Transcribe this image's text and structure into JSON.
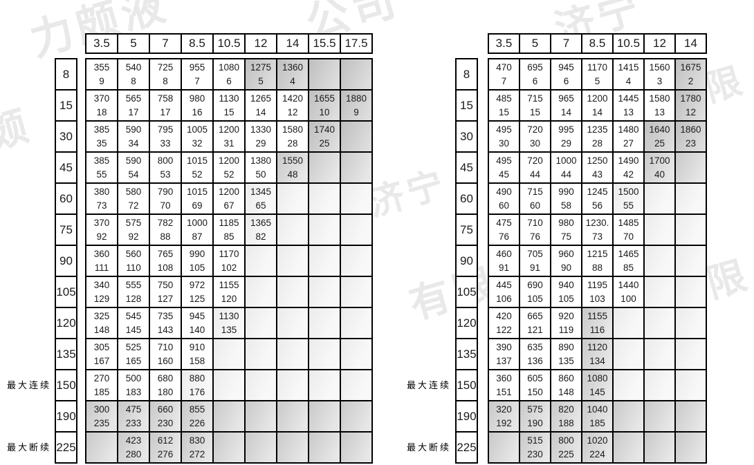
{
  "watermark": {
    "full_text": "济宁力颇液压有限公司",
    "fragments": [
      "力颇液",
      "公司",
      "济宁",
      "颇",
      "济宁",
      "液压有",
      "有限",
      "济宁力",
      "限",
      "有限",
      "压"
    ]
  },
  "side_label_continuous": "最大连续",
  "side_label_intermittent": "最大断续",
  "colors": {
    "border": "#000000",
    "background": "#ffffff",
    "shade_dark": "#bfbfbf",
    "shade_mid": "#c9c9c9",
    "shade_light": "#ebebeb",
    "watermark": "#e9e9e9"
  },
  "tables": [
    {
      "id": "left",
      "col_headers": [
        "3.5",
        "5",
        "7",
        "8.5",
        "10.5",
        "12",
        "14",
        "15.5",
        "17.5"
      ],
      "row_headers": [
        "8",
        "15",
        "30",
        "45",
        "60",
        "75",
        "90",
        "105",
        "120",
        "135",
        "150",
        "190",
        "225"
      ],
      "side_labels": [
        {
          "row_index": 10,
          "text": "最大连续"
        },
        {
          "row_index": 12,
          "text": "最大断续"
        }
      ],
      "rows": [
        [
          [
            "355",
            "9",
            0
          ],
          [
            "540",
            "8",
            0
          ],
          [
            "725",
            "8",
            0
          ],
          [
            "955",
            "7",
            0
          ],
          [
            "1080",
            "6",
            0
          ],
          [
            "1275",
            "5",
            3
          ],
          [
            "1360",
            "4",
            3
          ],
          [
            "",
            "",
            3
          ],
          [
            "",
            "",
            3
          ]
        ],
        [
          [
            "370",
            "18",
            0
          ],
          [
            "565",
            "17",
            0
          ],
          [
            "758",
            "17",
            0
          ],
          [
            "980",
            "16",
            0
          ],
          [
            "1130",
            "15",
            0
          ],
          [
            "1265",
            "14",
            0
          ],
          [
            "1420",
            "12",
            0
          ],
          [
            "1655",
            "10",
            3
          ],
          [
            "1880",
            "9",
            3
          ]
        ],
        [
          [
            "385",
            "35",
            0
          ],
          [
            "590",
            "34",
            0
          ],
          [
            "795",
            "33",
            0
          ],
          [
            "1005",
            "32",
            0
          ],
          [
            "1200",
            "31",
            0
          ],
          [
            "1330",
            "29",
            0
          ],
          [
            "1580",
            "28",
            0
          ],
          [
            "1740",
            "25",
            3
          ],
          [
            "",
            "",
            3
          ]
        ],
        [
          [
            "385",
            "55",
            0
          ],
          [
            "590",
            "54",
            0
          ],
          [
            "800",
            "53",
            0
          ],
          [
            "1015",
            "52",
            0
          ],
          [
            "1200",
            "52",
            0
          ],
          [
            "1380",
            "50",
            0
          ],
          [
            "1550",
            "48",
            2
          ],
          [
            "",
            "",
            2
          ],
          [
            "",
            "",
            2
          ]
        ],
        [
          [
            "380",
            "73",
            0
          ],
          [
            "580",
            "72",
            0
          ],
          [
            "790",
            "70",
            0
          ],
          [
            "1015",
            "69",
            0
          ],
          [
            "1200",
            "67",
            0
          ],
          [
            "1345",
            "65",
            1
          ],
          [
            "",
            "",
            1
          ],
          [
            "",
            "",
            1
          ],
          [
            "",
            "",
            1
          ]
        ],
        [
          [
            "370",
            "92",
            0
          ],
          [
            "575",
            "92",
            0
          ],
          [
            "782",
            "88",
            0
          ],
          [
            "1000",
            "87",
            0
          ],
          [
            "1185",
            "85",
            0
          ],
          [
            "1365",
            "82",
            1
          ],
          [
            "",
            "",
            1
          ],
          [
            "",
            "",
            1
          ],
          [
            "",
            "",
            1
          ]
        ],
        [
          [
            "360",
            "111",
            0
          ],
          [
            "560",
            "110",
            0
          ],
          [
            "765",
            "108",
            0
          ],
          [
            "990",
            "105",
            0
          ],
          [
            "1170",
            "102",
            0
          ],
          [
            "",
            "",
            1
          ],
          [
            "",
            "",
            1
          ],
          [
            "",
            "",
            1
          ],
          [
            "",
            "",
            1
          ]
        ],
        [
          [
            "340",
            "129",
            0
          ],
          [
            "555",
            "128",
            0
          ],
          [
            "750",
            "127",
            0
          ],
          [
            "972",
            "125",
            0
          ],
          [
            "1155",
            "120",
            0
          ],
          [
            "",
            "",
            1
          ],
          [
            "",
            "",
            1
          ],
          [
            "",
            "",
            1
          ],
          [
            "",
            "",
            1
          ]
        ],
        [
          [
            "325",
            "148",
            0
          ],
          [
            "545",
            "145",
            0
          ],
          [
            "735",
            "143",
            0
          ],
          [
            "945",
            "140",
            0
          ],
          [
            "1130",
            "135",
            1
          ],
          [
            "",
            "",
            1
          ],
          [
            "",
            "",
            1
          ],
          [
            "",
            "",
            1
          ],
          [
            "",
            "",
            1
          ]
        ],
        [
          [
            "305",
            "167",
            0
          ],
          [
            "525",
            "165",
            0
          ],
          [
            "710",
            "160",
            0
          ],
          [
            "910",
            "158",
            0
          ],
          [
            "",
            "",
            1
          ],
          [
            "",
            "",
            1
          ],
          [
            "",
            "",
            1
          ],
          [
            "",
            "",
            1
          ],
          [
            "",
            "",
            1
          ]
        ],
        [
          [
            "270",
            "185",
            0
          ],
          [
            "500",
            "183",
            0
          ],
          [
            "680",
            "180",
            0
          ],
          [
            "880",
            "176",
            1
          ],
          [
            "",
            "",
            1
          ],
          [
            "",
            "",
            1
          ],
          [
            "",
            "",
            1
          ],
          [
            "",
            "",
            1
          ],
          [
            "",
            "",
            1
          ]
        ],
        [
          [
            "300",
            "235",
            2
          ],
          [
            "475",
            "233",
            2
          ],
          [
            "660",
            "230",
            2
          ],
          [
            "855",
            "226",
            2
          ],
          [
            "",
            "",
            2
          ],
          [
            "",
            "",
            2
          ],
          [
            "",
            "",
            2
          ],
          [
            "",
            "",
            2
          ],
          [
            "",
            "",
            2
          ]
        ],
        [
          [
            "",
            "",
            2
          ],
          [
            "423",
            "280",
            2
          ],
          [
            "612",
            "276",
            2
          ],
          [
            "830",
            "272",
            2
          ],
          [
            "",
            "",
            2
          ],
          [
            "",
            "",
            2
          ],
          [
            "",
            "",
            2
          ],
          [
            "",
            "",
            2
          ],
          [
            "",
            "",
            2
          ]
        ]
      ]
    },
    {
      "id": "right",
      "col_headers": [
        "3.5",
        "5",
        "7",
        "8.5",
        "10.5",
        "12",
        "14"
      ],
      "row_headers": [
        "8",
        "15",
        "30",
        "45",
        "60",
        "75",
        "90",
        "105",
        "120",
        "135",
        "150",
        "190",
        "225"
      ],
      "side_labels": [
        {
          "row_index": 10,
          "text": "最大连续"
        },
        {
          "row_index": 12,
          "text": "最大断续"
        }
      ],
      "rows": [
        [
          [
            "470",
            "7",
            0
          ],
          [
            "695",
            "6",
            0
          ],
          [
            "945",
            "6",
            0
          ],
          [
            "1170",
            "5",
            0
          ],
          [
            "1415",
            "4",
            0
          ],
          [
            "1560",
            "3",
            0
          ],
          [
            "1675",
            "2",
            3
          ]
        ],
        [
          [
            "485",
            "15",
            0
          ],
          [
            "715",
            "15",
            0
          ],
          [
            "965",
            "14",
            0
          ],
          [
            "1200",
            "14",
            0
          ],
          [
            "1445",
            "13",
            0
          ],
          [
            "1580",
            "13",
            0
          ],
          [
            "1780",
            "12",
            3
          ]
        ],
        [
          [
            "495",
            "30",
            0
          ],
          [
            "720",
            "30",
            0
          ],
          [
            "995",
            "29",
            0
          ],
          [
            "1235",
            "28",
            0
          ],
          [
            "1480",
            "27",
            0
          ],
          [
            "1640",
            "25",
            3
          ],
          [
            "1860",
            "23",
            3
          ]
        ],
        [
          [
            "495",
            "45",
            0
          ],
          [
            "720",
            "44",
            0
          ],
          [
            "1000",
            "44",
            0
          ],
          [
            "1250",
            "43",
            0
          ],
          [
            "1490",
            "42",
            0
          ],
          [
            "1700",
            "40",
            2
          ],
          [
            "",
            "",
            2
          ]
        ],
        [
          [
            "490",
            "60",
            0
          ],
          [
            "715",
            "60",
            0
          ],
          [
            "990",
            "58",
            0
          ],
          [
            "1245",
            "56",
            0
          ],
          [
            "1500",
            "55",
            1
          ],
          [
            "",
            "",
            1
          ],
          [
            "",
            "",
            1
          ]
        ],
        [
          [
            "475",
            "76",
            0
          ],
          [
            "710",
            "76",
            0
          ],
          [
            "980",
            "75",
            0
          ],
          [
            "1230.",
            "73",
            0
          ],
          [
            "1485",
            "70",
            0
          ],
          [
            "",
            "",
            1
          ],
          [
            "",
            "",
            1
          ]
        ],
        [
          [
            "460",
            "91",
            0
          ],
          [
            "705",
            "91",
            0
          ],
          [
            "960",
            "90",
            0
          ],
          [
            "1215",
            "88",
            0
          ],
          [
            "1465",
            "85",
            0
          ],
          [
            "",
            "",
            1
          ],
          [
            "",
            "",
            1
          ]
        ],
        [
          [
            "445",
            "106",
            0
          ],
          [
            "690",
            "105",
            0
          ],
          [
            "940",
            "105",
            0
          ],
          [
            "1195",
            "103",
            0
          ],
          [
            "1440",
            "100",
            0
          ],
          [
            "",
            "",
            1
          ],
          [
            "",
            "",
            1
          ]
        ],
        [
          [
            "420",
            "122",
            0
          ],
          [
            "665",
            "121",
            0
          ],
          [
            "920",
            "119",
            0
          ],
          [
            "1155",
            "116",
            2
          ],
          [
            "",
            "",
            1
          ],
          [
            "",
            "",
            1
          ],
          [
            "",
            "",
            1
          ]
        ],
        [
          [
            "390",
            "137",
            0
          ],
          [
            "635",
            "136",
            0
          ],
          [
            "890",
            "135",
            0
          ],
          [
            "1120",
            "134",
            2
          ],
          [
            "",
            "",
            1
          ],
          [
            "",
            "",
            1
          ],
          [
            "",
            "",
            1
          ]
        ],
        [
          [
            "360",
            "151",
            0
          ],
          [
            "605",
            "150",
            0
          ],
          [
            "860",
            "148",
            0
          ],
          [
            "1080",
            "145",
            2
          ],
          [
            "",
            "",
            1
          ],
          [
            "",
            "",
            1
          ],
          [
            "",
            "",
            1
          ]
        ],
        [
          [
            "320",
            "192",
            2
          ],
          [
            "575",
            "190",
            2
          ],
          [
            "820",
            "188",
            2
          ],
          [
            "1040",
            "185",
            2
          ],
          [
            "",
            "",
            2
          ],
          [
            "",
            "",
            2
          ],
          [
            "",
            "",
            2
          ]
        ],
        [
          [
            "",
            "",
            2
          ],
          [
            "515",
            "230",
            2
          ],
          [
            "800",
            "225",
            2
          ],
          [
            "1020",
            "224",
            2
          ],
          [
            "",
            "",
            2
          ],
          [
            "",
            "",
            2
          ],
          [
            "",
            "",
            2
          ]
        ]
      ]
    }
  ]
}
